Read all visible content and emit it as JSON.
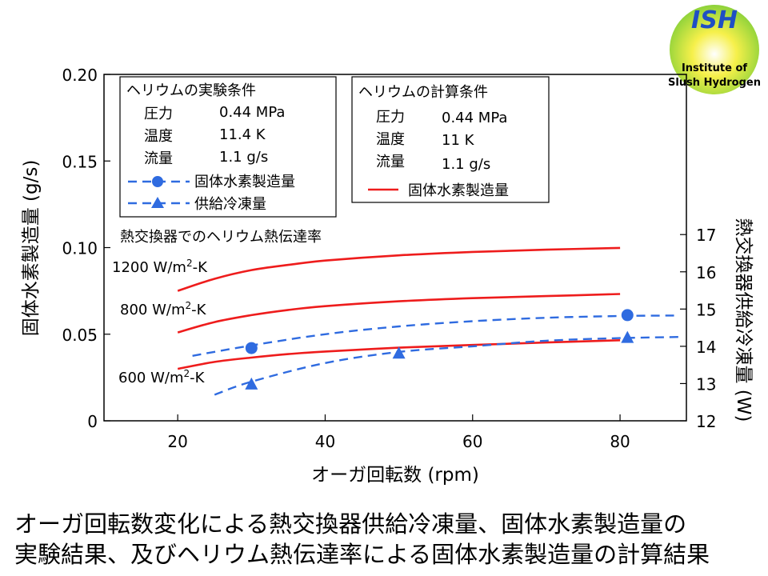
{
  "logo": {
    "abbr": "ISH",
    "text_lines": [
      "Institute of",
      "Slush Hydrogen"
    ]
  },
  "chart_data": {
    "type": "line",
    "xlabel": "オーガ回転数 (rpm)",
    "ylabel_left": "固体水素製造量 (g/s)",
    "ylabel_right": "熱交換器供給冷凍量 (W)",
    "xlim": [
      10,
      89
    ],
    "ylim_left": [
      0,
      0.2
    ],
    "ylim_right": [
      12,
      21.3
    ],
    "x_ticks": [
      20,
      40,
      60,
      80
    ],
    "y_left_ticks": [
      {
        "v": 0,
        "label": "0"
      },
      {
        "v": 0.05,
        "label": "0.05"
      },
      {
        "v": 0.1,
        "label": "0.10"
      },
      {
        "v": 0.15,
        "label": "0.15"
      },
      {
        "v": 0.2,
        "label": "0.20"
      }
    ],
    "y_right_ticks": [
      12,
      13,
      14,
      15,
      16,
      17
    ],
    "grid": false,
    "colors": {
      "calc": "#ee1c1c",
      "exp": "#2f6be0"
    },
    "calc_series": [
      {
        "label": "1200 W/m2-K",
        "label_main": "1200 W/m",
        "label_sup": "2",
        "label_end": "-K",
        "axis": "left",
        "x": [
          20,
          25,
          30,
          35,
          40,
          50,
          60,
          70,
          80
        ],
        "y": [
          0.075,
          0.082,
          0.087,
          0.09,
          0.0925,
          0.0955,
          0.0975,
          0.0988,
          0.0998
        ]
      },
      {
        "label": "800 W/m2-K",
        "label_main": "800 W/m",
        "label_sup": "2",
        "label_end": "-K",
        "axis": "left",
        "x": [
          20,
          25,
          30,
          35,
          40,
          50,
          60,
          70,
          80
        ],
        "y": [
          0.051,
          0.057,
          0.061,
          0.064,
          0.0662,
          0.069,
          0.0708,
          0.072,
          0.0732
        ]
      },
      {
        "label": "600 W/m2-K",
        "label_main": "600 W/m",
        "label_sup": "2",
        "label_end": "-K",
        "axis": "left",
        "x": [
          20,
          25,
          30,
          35,
          40,
          50,
          60,
          70,
          80
        ],
        "y": [
          0.03,
          0.034,
          0.0365,
          0.0385,
          0.04,
          0.0422,
          0.0438,
          0.0452,
          0.0465
        ]
      }
    ],
    "exp_series": [
      {
        "name": "固体水素製造量",
        "marker": "circle",
        "axis": "left",
        "curve_x": [
          22,
          30,
          40,
          50,
          60,
          70,
          80,
          88
        ],
        "curve_y": [
          0.0375,
          0.0435,
          0.05,
          0.0545,
          0.0575,
          0.0595,
          0.0605,
          0.0608
        ],
        "points_x": [
          30,
          81
        ],
        "points_y": [
          0.042,
          0.061
        ]
      },
      {
        "name": "供給冷凍量",
        "marker": "triangle",
        "axis": "right",
        "curve_x": [
          25,
          30,
          40,
          50,
          60,
          70,
          80,
          88
        ],
        "curve_y": [
          12.7,
          13.05,
          13.55,
          13.85,
          14.0,
          14.15,
          14.22,
          14.25
        ],
        "points_x": [
          30,
          50,
          81
        ],
        "points_y": [
          12.97,
          13.8,
          14.22
        ]
      }
    ],
    "exp_box": {
      "title": "ヘリウムの実験条件",
      "rows": [
        {
          "label": "圧力",
          "value": "0.44 MPa"
        },
        {
          "label": "温度",
          "value": "11.4 K"
        },
        {
          "label": "流量",
          "value": "1.1 g/s"
        }
      ],
      "legend": [
        "固体水素製造量",
        "供給冷凍量"
      ]
    },
    "calc_box": {
      "title": "ヘリウムの計算条件",
      "rows": [
        {
          "label": "圧力",
          "value": "0.44 MPa"
        },
        {
          "label": "温度",
          "value": "11 K"
        },
        {
          "label": "流量",
          "value": "1.1 g/s"
        }
      ],
      "legend": [
        "固体水素製造量"
      ]
    },
    "annotation": "熱交換器でのヘリウム熱伝達率"
  },
  "caption": [
    "オーガ回転数変化による熱交換器供給冷凍量、固体水素製造量の",
    "実験結果、及びヘリウム熱伝達率による固体水素製造量の計算結果"
  ]
}
